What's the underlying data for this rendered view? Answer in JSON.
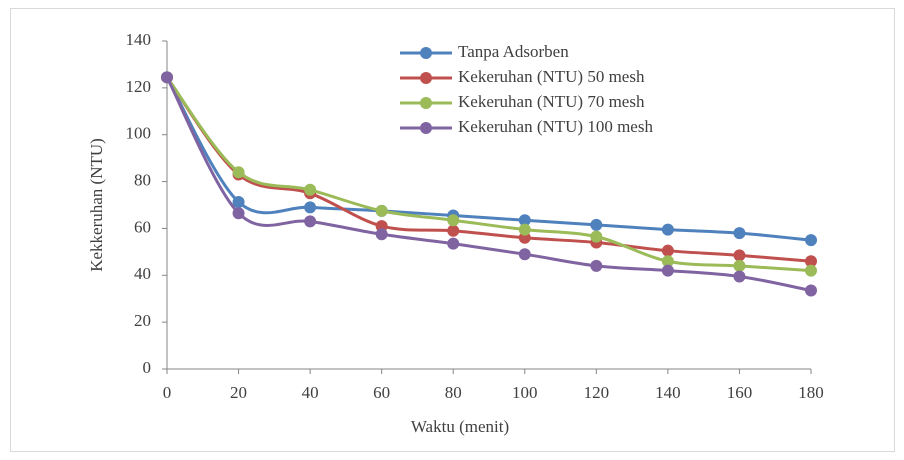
{
  "chart_data": {
    "type": "line",
    "xlabel": "Waktu (menit)",
    "ylabel": "Kekkeruhan (NTU)",
    "x": [
      0,
      20,
      40,
      60,
      80,
      100,
      120,
      140,
      160,
      180
    ],
    "series": [
      {
        "name": "Tanpa Adsorben",
        "color": "#4f81bd",
        "values": [
          124.5,
          71.3,
          69,
          67.5,
          65.5,
          63.5,
          61.5,
          59.5,
          58,
          55
        ]
      },
      {
        "name": "Kekeruhan (NTU) 50 mesh",
        "color": "#c0504d",
        "values": [
          124.5,
          83,
          75,
          61,
          59,
          56,
          54,
          50.5,
          48.5,
          46
        ]
      },
      {
        "name": "Kekeruhan (NTU) 70 mesh",
        "color": "#9bbb59",
        "values": [
          124.5,
          84,
          76.5,
          67.5,
          63.5,
          59.5,
          56.5,
          46,
          44,
          42
        ]
      },
      {
        "name": "Kekeruhan (NTU) 100 mesh",
        "color": "#8064a2",
        "values": [
          124.5,
          66.5,
          63,
          57.5,
          53.5,
          49,
          44,
          42,
          39.5,
          33.5
        ]
      }
    ],
    "xlim": [
      0,
      180
    ],
    "xticks": [
      0,
      20,
      40,
      60,
      80,
      100,
      120,
      140,
      160,
      180
    ],
    "ylim": [
      0,
      140
    ],
    "yticks": [
      0,
      20,
      40,
      60,
      80,
      100,
      120,
      140
    ],
    "grid": false,
    "legend": "top-right",
    "smooth": true
  }
}
